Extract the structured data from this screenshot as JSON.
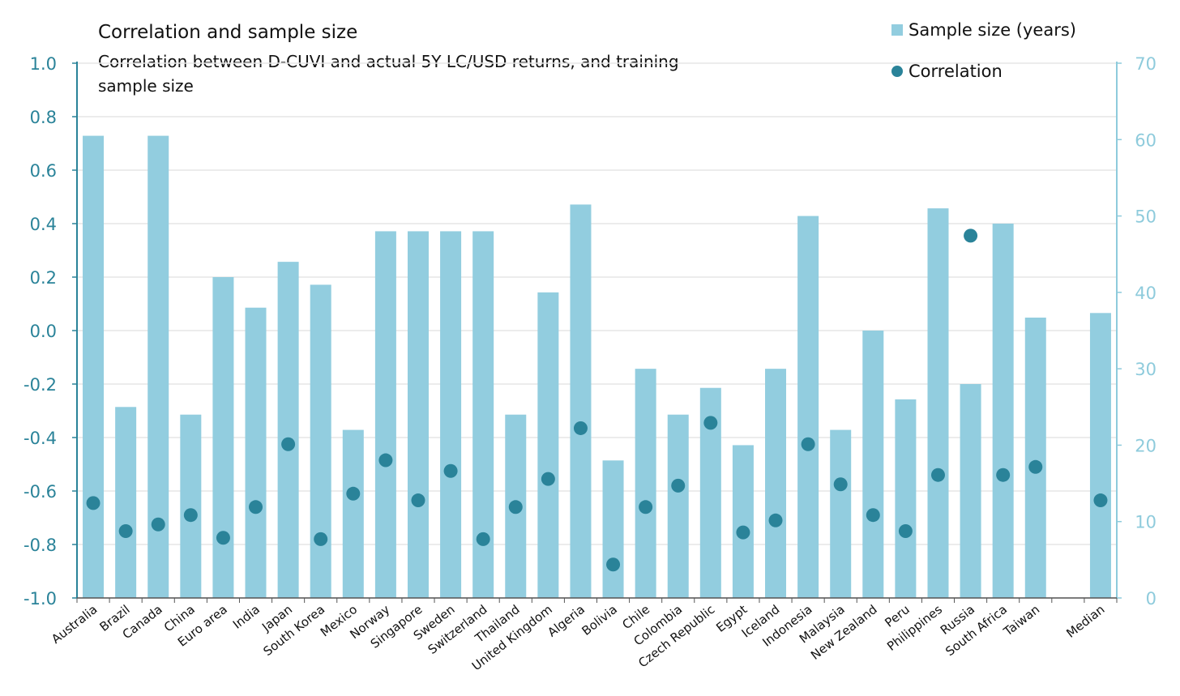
{
  "chart_data": {
    "type": "bar",
    "title": "Correlation and sample size",
    "subtitle": "Correlation between D-CUVI  and actual  5Y LC/USD returns, and training sample size",
    "categories": [
      "Australia",
      "Brazil",
      "Canada",
      "China",
      "Euro area",
      "India",
      "Japan",
      "South Korea",
      "Mexico",
      "Norway",
      "Singapore",
      "Sweden",
      "Switzerland",
      "Thailand",
      "United Kingdom",
      "Algeria",
      "Bolivia",
      "Chile",
      "Colombia",
      "Czech Republic",
      "Egypt",
      "Iceland",
      "Indonesia",
      "Malaysia",
      "New Zealand",
      "Peru",
      "Philippines",
      "Russia",
      "South Africa",
      "Taiwan",
      "",
      "Median"
    ],
    "series": [
      {
        "name": "Sample size (years)",
        "axis": "right",
        "type": "bar",
        "values": [
          60.5,
          25,
          60.5,
          24,
          42,
          38,
          44,
          41,
          22,
          48,
          48,
          48,
          48,
          24,
          40,
          51.5,
          18,
          30,
          24,
          27.5,
          20,
          30,
          50,
          22,
          35,
          26,
          51,
          28,
          49,
          36.7,
          null,
          37.3
        ]
      },
      {
        "name": "Correlation",
        "axis": "left",
        "type": "scatter",
        "values": [
          -0.645,
          -0.75,
          -0.725,
          -0.69,
          -0.775,
          -0.66,
          -0.425,
          -0.78,
          -0.61,
          -0.485,
          -0.635,
          -0.525,
          -0.78,
          -0.66,
          -0.555,
          -0.365,
          -0.875,
          -0.66,
          -0.58,
          -0.345,
          -0.755,
          -0.71,
          -0.425,
          -0.575,
          -0.69,
          -0.75,
          -0.54,
          0.355,
          -0.54,
          -0.51,
          null,
          -0.635
        ]
      }
    ],
    "y_left": {
      "min": -1.0,
      "max": 1.0,
      "ticks": [
        "1.0",
        "0.8",
        "0.6",
        "0.4",
        "0.2",
        "0.0",
        "-0.2",
        "-0.4",
        "-0.6",
        "-0.8",
        "-1.0"
      ]
    },
    "y_right": {
      "min": 0,
      "max": 70,
      "ticks": [
        "70",
        "60",
        "50",
        "40",
        "30",
        "20",
        "10",
        "0"
      ]
    },
    "legend_position": "top-right",
    "grid": true,
    "colors": {
      "bars": "#92cddf",
      "dots": "#2a8399",
      "left_axis": "#2a8399",
      "right_axis": "#8ecbdc",
      "grid": "#e6e6e6"
    }
  }
}
